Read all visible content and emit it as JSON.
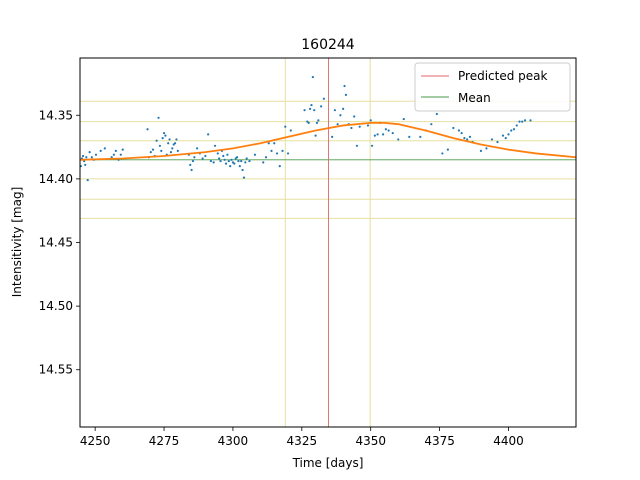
{
  "chart_data": {
    "type": "scatter",
    "title": "160244",
    "xlabel": "Time [days]",
    "ylabel": "Intensitivity [mag]",
    "xlim": [
      4244.5,
      4424.5
    ],
    "ylim": [
      14.595,
      14.305
    ],
    "y_inverted": true,
    "x_ticks": [
      4250,
      4275,
      4300,
      4325,
      4350,
      4375,
      4400
    ],
    "x_tick_labels": [
      "4250",
      "4275",
      "4300",
      "4325",
      "4350",
      "4375",
      "4400"
    ],
    "y_ticks": [
      14.35,
      14.4,
      14.45,
      14.5,
      14.55
    ],
    "y_tick_labels": [
      "14.35",
      "14.40",
      "14.45",
      "14.50",
      "14.55"
    ],
    "legend": {
      "placement": "top-right",
      "entries": [
        {
          "label": "Predicted peak",
          "color": "#e06666"
        },
        {
          "label": "Mean",
          "color": "#4a9a4a"
        }
      ]
    },
    "predicted_peak_x": 4334.7,
    "mean_y": 14.385,
    "vertical_bands_x": [
      4319.0,
      4349.8
    ],
    "horizontal_bands_y": [
      14.339,
      14.355,
      14.37,
      14.4,
      14.416,
      14.431
    ],
    "colors": {
      "points": "#1f77b4",
      "fit": "#ff7f0e",
      "peak": "#e06666",
      "mean": "#4a9a4a",
      "bands": "#e6e0a0"
    },
    "fit_curve": {
      "x": [
        4244.5,
        4260,
        4275,
        4290,
        4300,
        4310,
        4320,
        4330,
        4340,
        4350,
        4355,
        4360,
        4370,
        4380,
        4390,
        4400,
        4410,
        4424.5
      ],
      "y": [
        14.385,
        14.384,
        14.382,
        14.379,
        14.376,
        14.372,
        14.367,
        14.362,
        14.358,
        14.356,
        14.356,
        14.357,
        14.362,
        14.368,
        14.373,
        14.377,
        14.38,
        14.383
      ]
    },
    "series": [
      {
        "name": "observations",
        "x": [
          4244.8,
          4245.2,
          4245.6,
          4246.0,
          4246.4,
          4246.8,
          4247.3,
          4248.0,
          4248.8,
          4249.5,
          4250.3,
          4252.0,
          4253.5,
          4256.0,
          4256.8,
          4257.5,
          4258.5,
          4259.3,
          4260.0,
          4269.0,
          4269.5,
          4270.2,
          4271.0,
          4271.6,
          4272.3,
          4273.0,
          4273.5,
          4274.0,
          4274.5,
          4275.0,
          4275.5,
          4276.0,
          4276.5,
          4277.0,
          4277.5,
          4278.0,
          4278.5,
          4279.0,
          4279.5,
          4280.0,
          4284.0,
          4284.5,
          4285.0,
          4285.5,
          4286.0,
          4287.0,
          4288.0,
          4289.0,
          4290.0,
          4291.0,
          4292.0,
          4293.0,
          4293.5,
          4294.5,
          4295.0,
          4295.5,
          4296.0,
          4296.5,
          4297.0,
          4297.5,
          4298.0,
          4298.5,
          4299.0,
          4299.5,
          4300.0,
          4300.5,
          4301.0,
          4301.5,
          4302.0,
          4302.5,
          4303.0,
          4303.5,
          4304.0,
          4304.5,
          4305.0,
          4306.0,
          4308.0,
          4311.0,
          4312.0,
          4313.0,
          4314.0,
          4315.0,
          4316.0,
          4317.0,
          4318.0,
          4319.0,
          4320.0,
          4321.0,
          4326.0,
          4327.0,
          4327.5,
          4328.0,
          4328.5,
          4329.0,
          4329.5,
          4330.0,
          4330.5,
          4331.0,
          4332.0,
          4333.0,
          4336.0,
          4337.0,
          4338.0,
          4339.0,
          4340.0,
          4340.5,
          4341.0,
          4342.0,
          4343.0,
          4344.0,
          4345.0,
          4346.0,
          4349.0,
          4350.0,
          4350.5,
          4351.5,
          4352.5,
          4353.5,
          4354.5,
          4355.5,
          4356.5,
          4358.0,
          4360.0,
          4362.0,
          4364.0,
          4368.0,
          4370.0,
          4372.0,
          4374.0,
          4376.0,
          4378.0,
          4380.0,
          4382.0,
          4383.0,
          4384.0,
          4385.0,
          4386.0,
          4387.0,
          4390.0,
          4392.0,
          4394.0,
          4396.0,
          4398.0,
          4399.0,
          4400.0,
          4401.0,
          4402.0,
          4403.0,
          4404.0,
          4405.0,
          4406.0,
          4408.0
        ],
        "y": [
          14.39,
          14.384,
          14.382,
          14.386,
          14.389,
          14.383,
          14.401,
          14.379,
          14.383,
          14.385,
          14.381,
          14.378,
          14.376,
          14.383,
          14.381,
          14.378,
          14.385,
          14.381,
          14.377,
          14.361,
          14.383,
          14.379,
          14.377,
          14.382,
          14.37,
          14.352,
          14.374,
          14.378,
          14.368,
          14.364,
          14.366,
          14.381,
          14.372,
          14.369,
          14.379,
          14.376,
          14.373,
          14.372,
          14.369,
          14.378,
          14.381,
          14.389,
          14.393,
          14.386,
          14.383,
          14.376,
          14.38,
          14.384,
          14.382,
          14.365,
          14.386,
          14.387,
          14.374,
          14.38,
          14.384,
          14.386,
          14.378,
          14.382,
          14.385,
          14.388,
          14.381,
          14.386,
          14.39,
          14.385,
          14.387,
          14.388,
          14.384,
          14.383,
          14.386,
          14.39,
          14.386,
          14.393,
          14.399,
          14.387,
          14.384,
          14.386,
          14.381,
          14.387,
          14.383,
          14.372,
          14.378,
          14.372,
          14.38,
          14.39,
          14.378,
          14.359,
          14.38,
          14.362,
          14.346,
          14.355,
          14.356,
          14.345,
          14.342,
          14.32,
          14.346,
          14.366,
          14.356,
          14.354,
          14.343,
          14.337,
          14.367,
          14.346,
          14.357,
          14.35,
          14.345,
          14.327,
          14.334,
          14.357,
          14.36,
          14.351,
          14.374,
          14.359,
          14.358,
          14.354,
          14.374,
          14.366,
          14.365,
          14.356,
          14.365,
          14.361,
          14.362,
          14.364,
          14.369,
          14.353,
          14.367,
          14.367,
          14.362,
          14.357,
          14.349,
          14.38,
          14.377,
          14.36,
          14.362,
          14.364,
          14.368,
          14.369,
          14.367,
          14.371,
          14.378,
          14.376,
          14.369,
          14.371,
          14.366,
          14.368,
          14.365,
          14.362,
          14.361,
          14.358,
          14.355,
          14.355,
          14.354,
          14.354
        ]
      }
    ]
  }
}
